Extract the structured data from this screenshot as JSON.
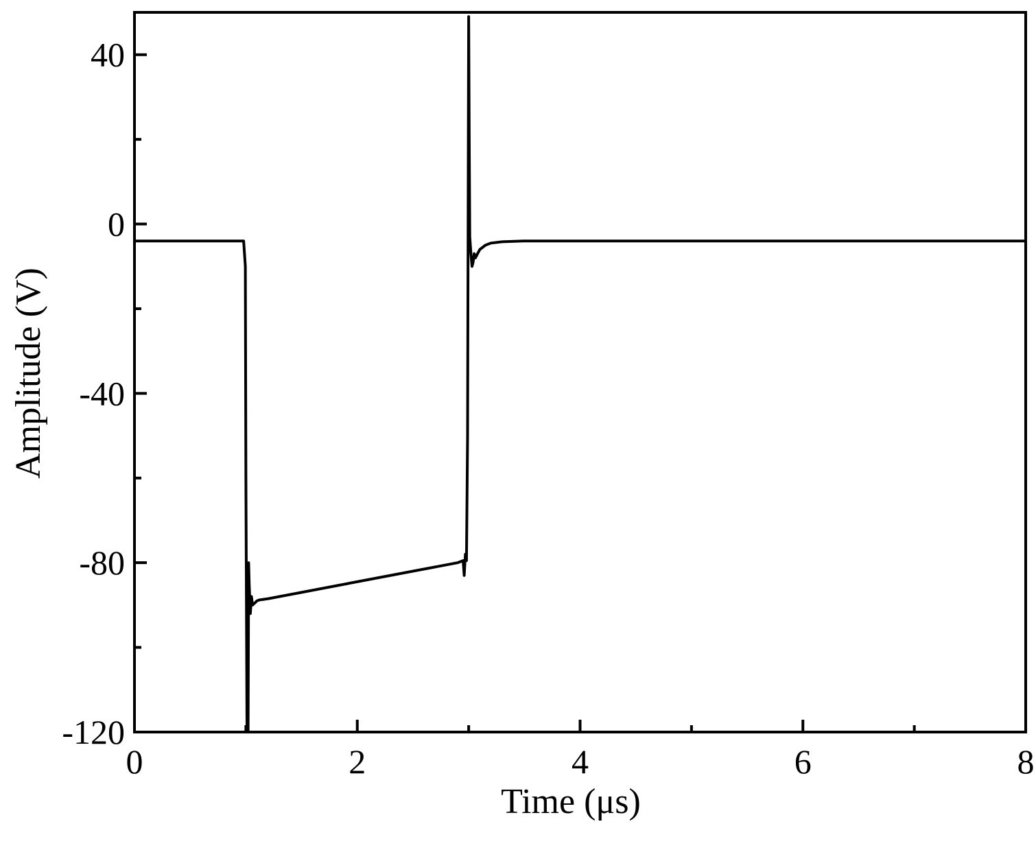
{
  "chart_data": {
    "type": "line",
    "title": "",
    "xlabel": "Time (μs)",
    "ylabel": "Amplitude (V)",
    "xlim": [
      0,
      8
    ],
    "ylim": [
      -120,
      50
    ],
    "x_ticks": [
      0,
      2,
      4,
      6,
      8
    ],
    "x_minor_ticks": [
      1,
      3,
      5,
      7
    ],
    "y_ticks": [
      -120,
      -80,
      -40,
      0,
      40
    ],
    "y_minor_ticks": [
      -100,
      -60,
      -20,
      20
    ],
    "grid": false,
    "series": [
      {
        "color": "#000000",
        "x": [
          0,
          0.5,
          0.98,
          0.995,
          1.0,
          1.01,
          1.02,
          1.025,
          1.03,
          1.04,
          1.05,
          1.06,
          1.08,
          1.1,
          1.12,
          1.2,
          1.5,
          2.0,
          2.5,
          2.9,
          2.95,
          2.96,
          2.97,
          2.98,
          2.99,
          3.0,
          3.005,
          3.01,
          3.02,
          3.03,
          3.04,
          3.05,
          3.06,
          3.08,
          3.1,
          3.15,
          3.2,
          3.3,
          3.5,
          4.0,
          5.0,
          6.0,
          7.0,
          8.0
        ],
        "y": [
          -4,
          -4,
          -4,
          -10,
          -60,
          -120,
          -120,
          -80,
          -85,
          -92,
          -88,
          -90,
          -89.5,
          -89,
          -88.8,
          -88.5,
          -87,
          -84.5,
          -82,
          -80,
          -79.5,
          -83,
          -78,
          -79.5,
          -50,
          49,
          20,
          -3,
          -7,
          -10,
          -9,
          -7,
          -8,
          -7,
          -6,
          -5,
          -4.5,
          -4.2,
          -4,
          -4,
          -4,
          -4,
          -4,
          -4
        ]
      }
    ]
  }
}
